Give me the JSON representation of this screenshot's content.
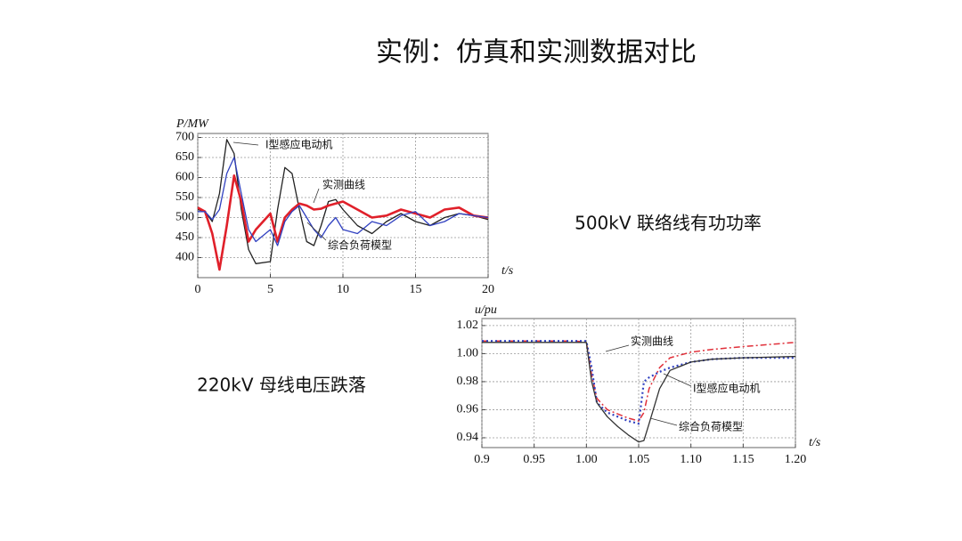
{
  "title": "实例：仿真和实测数据对比",
  "chart_data": [
    {
      "type": "line",
      "caption": "500kV 联络线有功功率",
      "y_label": "P/MW",
      "x_label": "t/s",
      "x": [
        0,
        0.5,
        1,
        1.5,
        2,
        2.5,
        3,
        3.5,
        4,
        5,
        5.5,
        6,
        6.5,
        7,
        7.5,
        8,
        8.5,
        9,
        9.5,
        10,
        11,
        12,
        13,
        14,
        15,
        16,
        17,
        18,
        19,
        20
      ],
      "xlim": [
        0,
        20
      ],
      "xticks": [
        0,
        5,
        10,
        15,
        20
      ],
      "ylim": [
        350,
        710
      ],
      "yticks": [
        400,
        450,
        500,
        550,
        600,
        650,
        700
      ],
      "grid": true,
      "series": [
        {
          "name": "I型感应电动机",
          "color": "#222222",
          "values": [
            520,
            515,
            490,
            560,
            695,
            660,
            520,
            420,
            385,
            390,
            520,
            625,
            610,
            520,
            440,
            430,
            480,
            540,
            545,
            520,
            480,
            460,
            490,
            510,
            490,
            480,
            500,
            510,
            505,
            495
          ]
        },
        {
          "name": "实测曲线",
          "color": "#e0202a",
          "values": [
            525,
            515,
            460,
            370,
            480,
            605,
            540,
            440,
            470,
            510,
            440,
            500,
            520,
            535,
            530,
            520,
            522,
            530,
            535,
            540,
            520,
            500,
            505,
            520,
            510,
            500,
            520,
            525,
            505,
            500
          ]
        },
        {
          "name": "综合负荷模型",
          "color": "#3040c0",
          "values": [
            515,
            515,
            495,
            520,
            610,
            650,
            560,
            470,
            440,
            470,
            430,
            490,
            515,
            530,
            500,
            470,
            450,
            480,
            500,
            470,
            460,
            490,
            480,
            505,
            515,
            480,
            490,
            510,
            505,
            500
          ]
        }
      ]
    },
    {
      "type": "line",
      "caption": "220kV 母线电压跌落",
      "y_label": "u/pu",
      "x_label": "t/s",
      "x": [
        0.9,
        0.95,
        0.99,
        1.0,
        1.005,
        1.01,
        1.02,
        1.03,
        1.04,
        1.05,
        1.055,
        1.06,
        1.07,
        1.08,
        1.1,
        1.12,
        1.15,
        1.2
      ],
      "xlim": [
        0.9,
        1.2
      ],
      "xticks": [
        0.9,
        0.95,
        {
          "value": 1,
          "label": "1.00"
        },
        1.05,
        {
          "value": 1.1,
          "label": "1.10"
        },
        1.15,
        {
          "value": 1.2,
          "label": "1.20"
        }
      ],
      "ylim": [
        0.933,
        1.025
      ],
      "yticks": [
        0.94,
        0.96,
        0.98,
        {
          "value": 1,
          "label": "1.00"
        },
        1.02
      ],
      "grid": true,
      "series": [
        {
          "name": "实测曲线",
          "color": "#e0303a",
          "dash": "dashdot",
          "values": [
            1.009,
            1.009,
            1.009,
            1.008,
            0.985,
            0.968,
            0.96,
            0.957,
            0.954,
            0.952,
            0.958,
            0.975,
            0.99,
            0.997,
            1.001,
            1.003,
            1.005,
            1.008
          ]
        },
        {
          "name": "I型感应电动机",
          "color": "#3040c0",
          "dash": "dot",
          "values": [
            1.009,
            1.009,
            1.009,
            1.009,
            0.99,
            0.965,
            0.958,
            0.955,
            0.952,
            0.95,
            0.98,
            0.983,
            0.987,
            0.99,
            0.994,
            0.996,
            0.997,
            0.997
          ]
        },
        {
          "name": "综合负荷模型",
          "color": "#333333",
          "values": [
            1.008,
            1.008,
            1.008,
            1.008,
            0.98,
            0.965,
            0.955,
            0.948,
            0.942,
            0.937,
            0.938,
            0.95,
            0.975,
            0.988,
            0.994,
            0.996,
            0.997,
            0.998
          ]
        }
      ]
    }
  ]
}
